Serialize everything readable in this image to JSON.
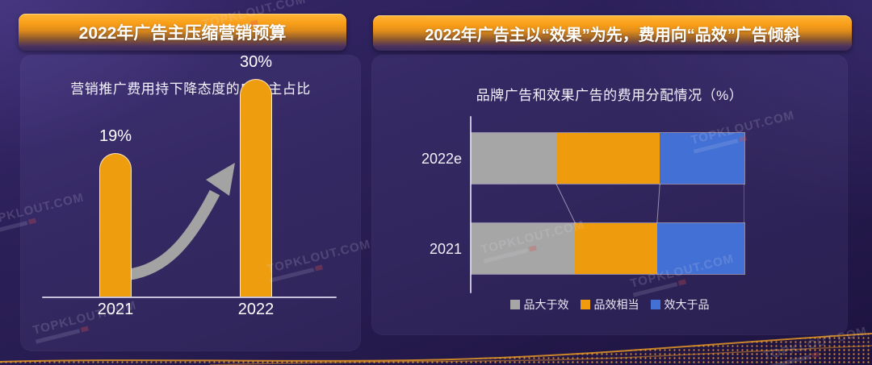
{
  "watermark": {
    "text": "TOPKLOUT.COM"
  },
  "panels": {
    "left": {
      "header": "2022年广告主压缩营销预算",
      "chart_title": "营销推广费用持下降态度的广告主占比"
    },
    "right": {
      "header": "2022年广告主以“效果”为先，费用向“品效”广告倾斜",
      "chart_title": "品牌广告和效果广告的费用分配情况（%）"
    }
  },
  "chart_data": [
    {
      "type": "bar",
      "title": "营销推广费用持下降态度的广告主占比",
      "categories": [
        "2021",
        "2022"
      ],
      "values": [
        19,
        30
      ],
      "value_labels": [
        "19%",
        "30%"
      ],
      "unit": "%",
      "ylim": [
        0,
        32
      ],
      "bar_color": "#EE9D0F",
      "trend_arrow": true,
      "grid": false
    },
    {
      "type": "stacked-bar-horizontal",
      "title": "品牌广告和效果广告的费用分配情况（%）",
      "categories": [
        "2022e",
        "2021"
      ],
      "series": [
        {
          "name": "品大于效",
          "color": "#A6A6A6",
          "values": [
            31,
            38
          ]
        },
        {
          "name": "品效相当",
          "color": "#EE9C0E",
          "values": [
            38,
            30
          ]
        },
        {
          "name": "效大于品",
          "color": "#4370D4",
          "values": [
            31,
            32
          ]
        }
      ],
      "xlim": [
        0,
        100
      ],
      "legend_position": "bottom",
      "connectors": true,
      "grid": false
    }
  ],
  "colors": {
    "page_bg": "#2b1f58",
    "card_bg": "#332761",
    "header_orange": "#F89E18",
    "bar_orange": "#EE9D0F",
    "series_gray": "#A6A6A6",
    "series_orange": "#EE9C0E",
    "series_blue": "#4370D4",
    "arrow_gray": "#A3A3A3",
    "wave_orange": "#F79413",
    "text": "#FFFFFF"
  }
}
